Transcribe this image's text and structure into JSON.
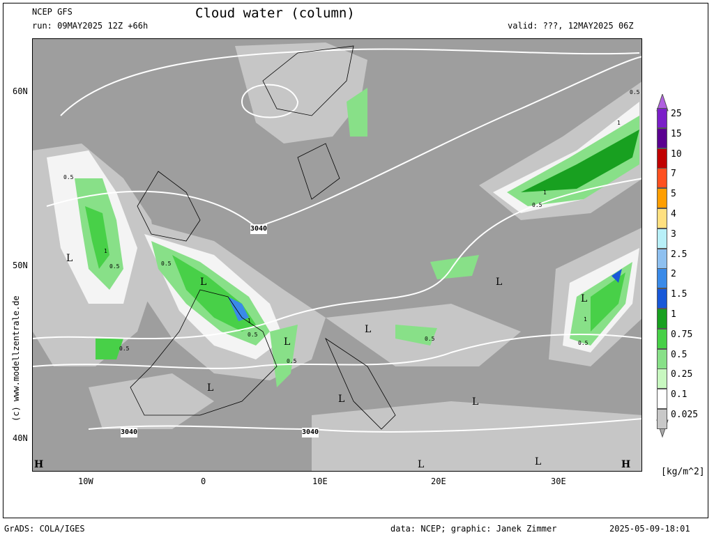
{
  "header": {
    "model": "NCEP GFS",
    "run": "run: 09MAY2025 12Z +66h",
    "title": "Cloud water (column)",
    "valid": "valid: ???, 12MAY2025 06Z"
  },
  "axes": {
    "lat_labels": [
      "60N",
      "50N",
      "40N"
    ],
    "lon_labels": [
      "10W",
      "0",
      "10E",
      "20E",
      "30E"
    ]
  },
  "side_credit": "(c) www.modellzentrale.de",
  "legend": {
    "labels": [
      "25",
      "15",
      "10",
      "7",
      "5",
      "4",
      "3",
      "2.5",
      "2",
      "1.5",
      "1",
      "0.75",
      "0.5",
      "0.25",
      "0.1",
      "0.025"
    ],
    "colors": [
      "#7a1fc8",
      "#5a0090",
      "#c00000",
      "#ff5020",
      "#ff9e00",
      "#ffe080",
      "#b8f0f8",
      "#8ec0f0",
      "#3a8ae8",
      "#1858d8",
      "#18a020",
      "#48d048",
      "#88e088",
      "#c8f8c0",
      "#ffffff",
      "#c8c8c8"
    ],
    "unit": "[kg/m^2]"
  },
  "map": {
    "pressure_labels": [
      "3040",
      "3040",
      "3040"
    ],
    "low_markers": [
      "L",
      "L",
      "L",
      "L",
      "L",
      "L",
      "L",
      "L",
      "L",
      "L",
      "L"
    ],
    "high_markers": [
      "H",
      "H"
    ],
    "contour_labels": [
      "0.5",
      "1",
      "0.5",
      "0.5",
      "1",
      "0.5",
      "0.5",
      "1",
      "0.5",
      "1",
      "0.5",
      "0.5",
      "1",
      "0.5",
      "0.5"
    ]
  },
  "footer": {
    "left": "GrADS: COLA/IGES",
    "center": "data: NCEP; graphic: Janek Zimmer",
    "right": "2025-05-09-18:01"
  }
}
